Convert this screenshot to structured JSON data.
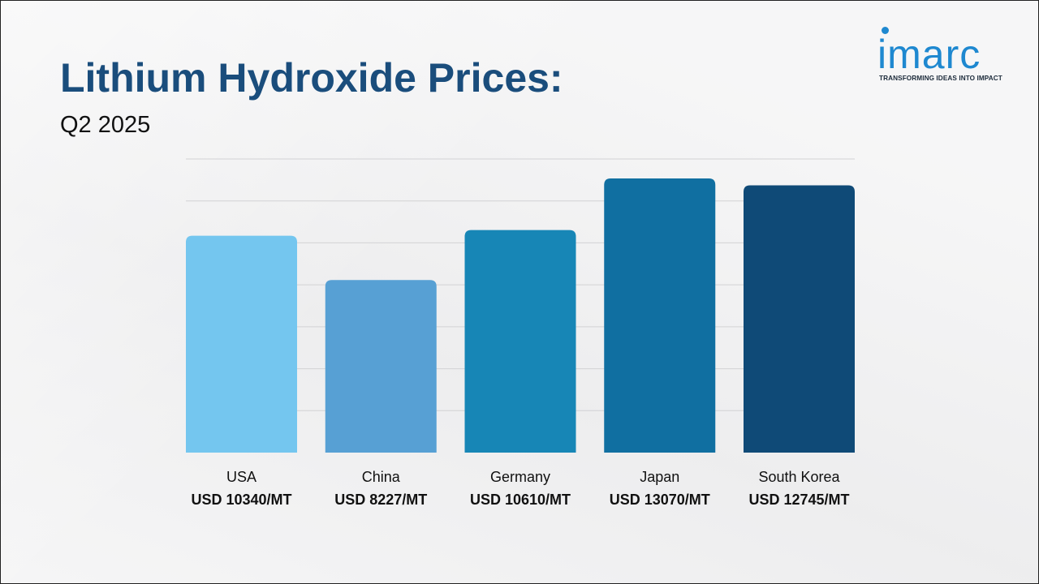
{
  "header": {
    "title": "Lithium Hydroxide Prices:",
    "subtitle": "Q2 2025"
  },
  "logo": {
    "word": "imarc",
    "tagline": "TRANSFORMING IDEAS INTO IMPACT",
    "color": "#1e88d0"
  },
  "chart_data": {
    "type": "bar",
    "title": "Lithium Hydroxide Prices:",
    "subtitle": "Q2 2025",
    "categories": [
      "USA",
      "China",
      "Germany",
      "Japan",
      "South Korea"
    ],
    "values": [
      10340,
      8227,
      10610,
      13070,
      12745
    ],
    "value_labels": [
      "USD 10340/MT",
      "USD 8227/MT",
      "USD 10610/MT",
      "USD 13070/MT",
      "USD 12745/MT"
    ],
    "colors": [
      "#74c6ef",
      "#57a0d4",
      "#1786b6",
      "#106fa1",
      "#0f4a77"
    ],
    "ylim": [
      0,
      14000
    ],
    "grid": true,
    "legend": "none",
    "xlabel": "",
    "ylabel": ""
  }
}
